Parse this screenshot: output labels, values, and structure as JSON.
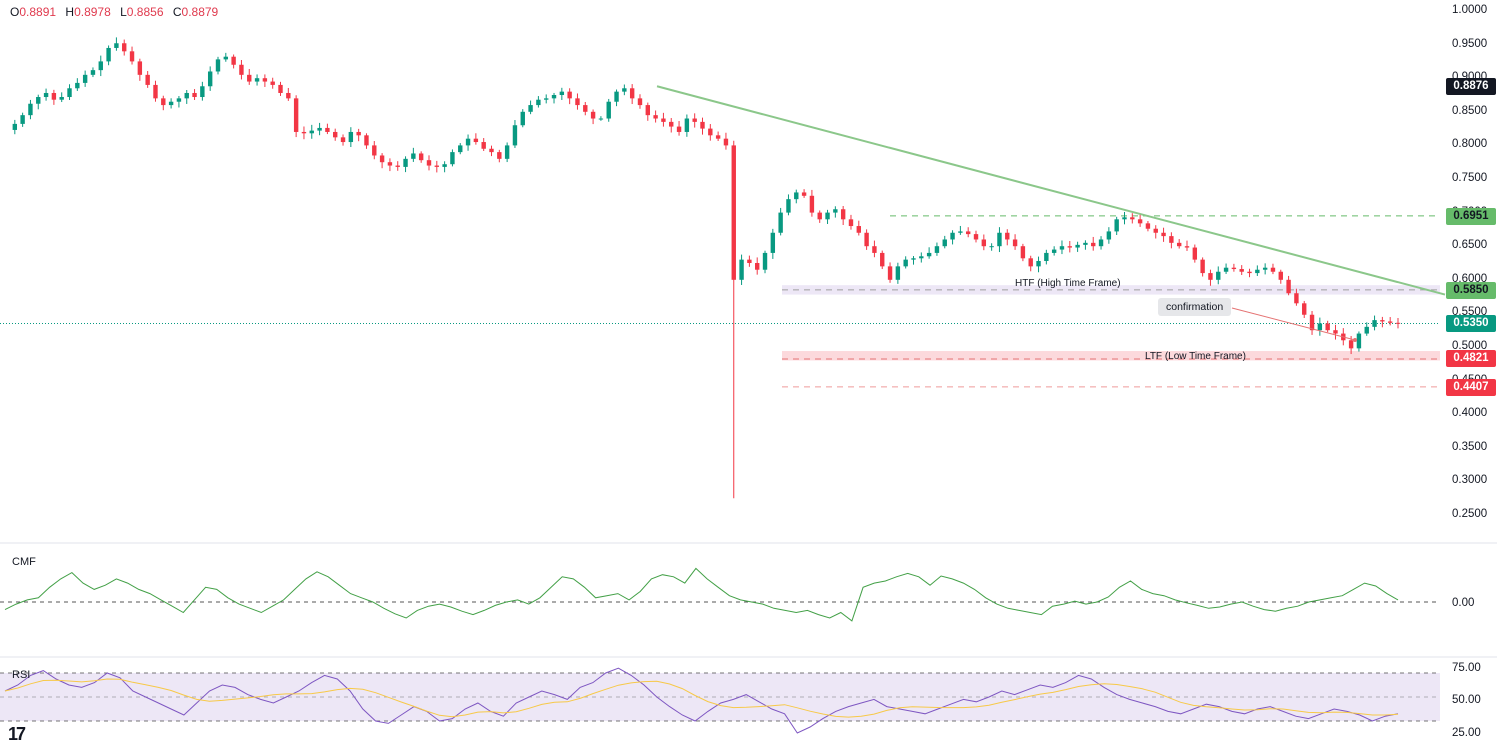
{
  "ohlc": {
    "o_label": "O",
    "o": "0.8891",
    "h_label": "H",
    "h": "0.8978",
    "l_label": "L",
    "l": "0.8856",
    "c_label": "C",
    "c": "0.8879"
  },
  "price_axis_ticks": [
    "1.0000",
    "0.9500",
    "0.9000",
    "0.8500",
    "0.8000",
    "0.7500",
    "0.7000",
    "0.6500",
    "0.6000",
    "0.5500",
    "0.5000",
    "0.4500",
    "0.4000",
    "0.3500",
    "0.3000",
    "0.2500"
  ],
  "badges": {
    "live_price": "0.8876",
    "resistance": "0.6951",
    "htf_level": "0.5850",
    "current_price": "0.5350",
    "ltf_level": "0.4821",
    "lower_level": "0.4407"
  },
  "annotations": {
    "htf": "HTF (High Time Frame)",
    "ltf": "LTF (Low Time Frame)",
    "confirmation": "confirmation"
  },
  "cmf": {
    "label": "CMF",
    "zero_tick": "0.00"
  },
  "rsi": {
    "label": "RSI",
    "ticks": [
      "75.00",
      "50.00",
      "25.00"
    ]
  },
  "logo_text": "17",
  "colors": {
    "up": "#089981",
    "down": "#f23645",
    "trendline": "#8bc78a",
    "resistance_green": "#66bb6a",
    "ltf_red": "#f23645",
    "cmf_line": "#43a047",
    "rsi_line": "#7e57c2",
    "rsi_ma": "#f7c948",
    "rsi_band": "#ede7f6"
  },
  "chart_data": [
    {
      "type": "candlestick",
      "title": "",
      "ylim": [
        0.25,
        1.0
      ],
      "price_path": [
        0.823,
        0.832,
        0.845,
        0.862,
        0.872,
        0.878,
        0.868,
        0.872,
        0.885,
        0.893,
        0.905,
        0.912,
        0.925,
        0.945,
        0.952,
        0.94,
        0.925,
        0.905,
        0.89,
        0.87,
        0.86,
        0.865,
        0.87,
        0.878,
        0.872,
        0.888,
        0.91,
        0.928,
        0.932,
        0.92,
        0.905,
        0.895,
        0.9,
        0.895,
        0.89,
        0.878,
        0.87,
        0.82,
        0.818,
        0.822,
        0.826,
        0.82,
        0.812,
        0.805,
        0.82,
        0.815,
        0.8,
        0.785,
        0.775,
        0.77,
        0.768,
        0.78,
        0.788,
        0.778,
        0.77,
        0.768,
        0.772,
        0.79,
        0.8,
        0.81,
        0.805,
        0.795,
        0.79,
        0.78,
        0.8,
        0.83,
        0.85,
        0.86,
        0.868,
        0.87,
        0.875,
        0.88,
        0.87,
        0.86,
        0.85,
        0.84,
        0.84,
        0.865,
        0.88,
        0.885,
        0.87,
        0.86,
        0.845,
        0.84,
        0.835,
        0.828,
        0.82,
        0.84,
        0.835,
        0.825,
        0.815,
        0.81,
        0.8,
        0.6,
        0.63,
        0.625,
        0.615,
        0.64,
        0.67,
        0.7,
        0.72,
        0.73,
        0.725,
        0.7,
        0.69,
        0.7,
        0.705,
        0.69,
        0.68,
        0.67,
        0.65,
        0.64,
        0.62,
        0.6,
        0.62,
        0.63,
        0.632,
        0.635,
        0.64,
        0.65,
        0.66,
        0.67,
        0.672,
        0.668,
        0.66,
        0.65,
        0.65,
        0.67,
        0.66,
        0.65,
        0.632,
        0.62,
        0.628,
        0.64,
        0.645,
        0.65,
        0.648,
        0.652,
        0.655,
        0.65,
        0.66,
        0.672,
        0.69,
        0.693,
        0.69,
        0.684,
        0.676,
        0.67,
        0.665,
        0.655,
        0.65,
        0.648,
        0.63,
        0.61,
        0.6,
        0.612,
        0.618,
        0.616,
        0.612,
        0.61,
        0.615,
        0.618,
        0.612,
        0.6,
        0.58,
        0.565,
        0.548,
        0.525,
        0.535,
        0.525,
        0.52,
        0.51,
        0.498,
        0.52,
        0.53,
        0.54,
        0.538,
        0.536,
        0.535
      ],
      "series": [
        {
          "name": "HTF (High Time Frame)",
          "type": "hline",
          "y": 0.585
        },
        {
          "name": "LTF (Low Time Frame)",
          "type": "hline",
          "y": 0.4821
        },
        {
          "name": "",
          "type": "hline",
          "y": 0.6951
        },
        {
          "name": "",
          "type": "hline",
          "y": 0.4407
        }
      ],
      "wick_low": 0.275,
      "current_price": 0.535
    },
    {
      "type": "line",
      "name": "CMF",
      "zero": 0.0,
      "values": [
        -0.18,
        -0.05,
        0.05,
        0.1,
        0.35,
        0.55,
        0.7,
        0.45,
        0.3,
        0.4,
        0.55,
        0.45,
        0.3,
        0.2,
        0.05,
        -0.1,
        -0.25,
        0.05,
        0.35,
        0.3,
        0.1,
        -0.05,
        -0.15,
        -0.25,
        -0.1,
        0.05,
        0.3,
        0.55,
        0.72,
        0.6,
        0.4,
        0.2,
        0.1,
        0.0,
        -0.15,
        -0.28,
        -0.38,
        -0.2,
        -0.1,
        -0.05,
        -0.12,
        -0.22,
        -0.3,
        -0.2,
        -0.08,
        0.0,
        0.05,
        -0.05,
        0.1,
        0.35,
        0.6,
        0.55,
        0.35,
        0.1,
        0.15,
        0.2,
        0.05,
        0.25,
        0.55,
        0.65,
        0.6,
        0.45,
        0.8,
        0.55,
        0.35,
        0.15,
        0.05,
        0.0,
        -0.05,
        -0.15,
        -0.2,
        -0.25,
        -0.2,
        -0.3,
        -0.38,
        -0.25,
        -0.45,
        0.35,
        0.45,
        0.5,
        0.6,
        0.68,
        0.6,
        0.4,
        0.62,
        0.55,
        0.45,
        0.3,
        0.1,
        -0.05,
        -0.15,
        -0.2,
        -0.25,
        -0.3,
        -0.1,
        -0.05,
        0.02,
        -0.05,
        0.0,
        0.12,
        0.35,
        0.5,
        0.3,
        0.2,
        0.15,
        0.05,
        -0.02,
        -0.08,
        -0.15,
        -0.12,
        -0.05,
        0.0,
        -0.1,
        -0.18,
        -0.22,
        -0.15,
        -0.1,
        0.0,
        0.05,
        0.1,
        0.15,
        0.3,
        0.45,
        0.38,
        0.2,
        0.05
      ]
    },
    {
      "type": "line",
      "name": "RSI",
      "ylim": [
        25,
        75
      ],
      "band": [
        30,
        70
      ],
      "values": [
        55,
        60,
        68,
        72,
        65,
        60,
        58,
        62,
        70,
        66,
        55,
        50,
        45,
        40,
        35,
        45,
        55,
        60,
        58,
        52,
        48,
        45,
        50,
        55,
        62,
        68,
        65,
        55,
        40,
        30,
        28,
        35,
        42,
        38,
        30,
        32,
        40,
        45,
        38,
        34,
        45,
        50,
        55,
        52,
        48,
        58,
        62,
        70,
        74,
        68,
        60,
        50,
        42,
        35,
        30,
        38,
        45,
        48,
        52,
        46,
        40,
        36,
        20,
        25,
        32,
        38,
        42,
        45,
        48,
        42,
        40,
        38,
        36,
        40,
        44,
        48,
        46,
        50,
        55,
        52,
        56,
        60,
        58,
        62,
        68,
        65,
        58,
        52,
        48,
        45,
        42,
        38,
        36,
        40,
        44,
        42,
        38,
        36,
        40,
        42,
        38,
        34,
        32,
        36,
        40,
        38,
        35,
        30,
        34,
        36
      ]
    }
  ]
}
